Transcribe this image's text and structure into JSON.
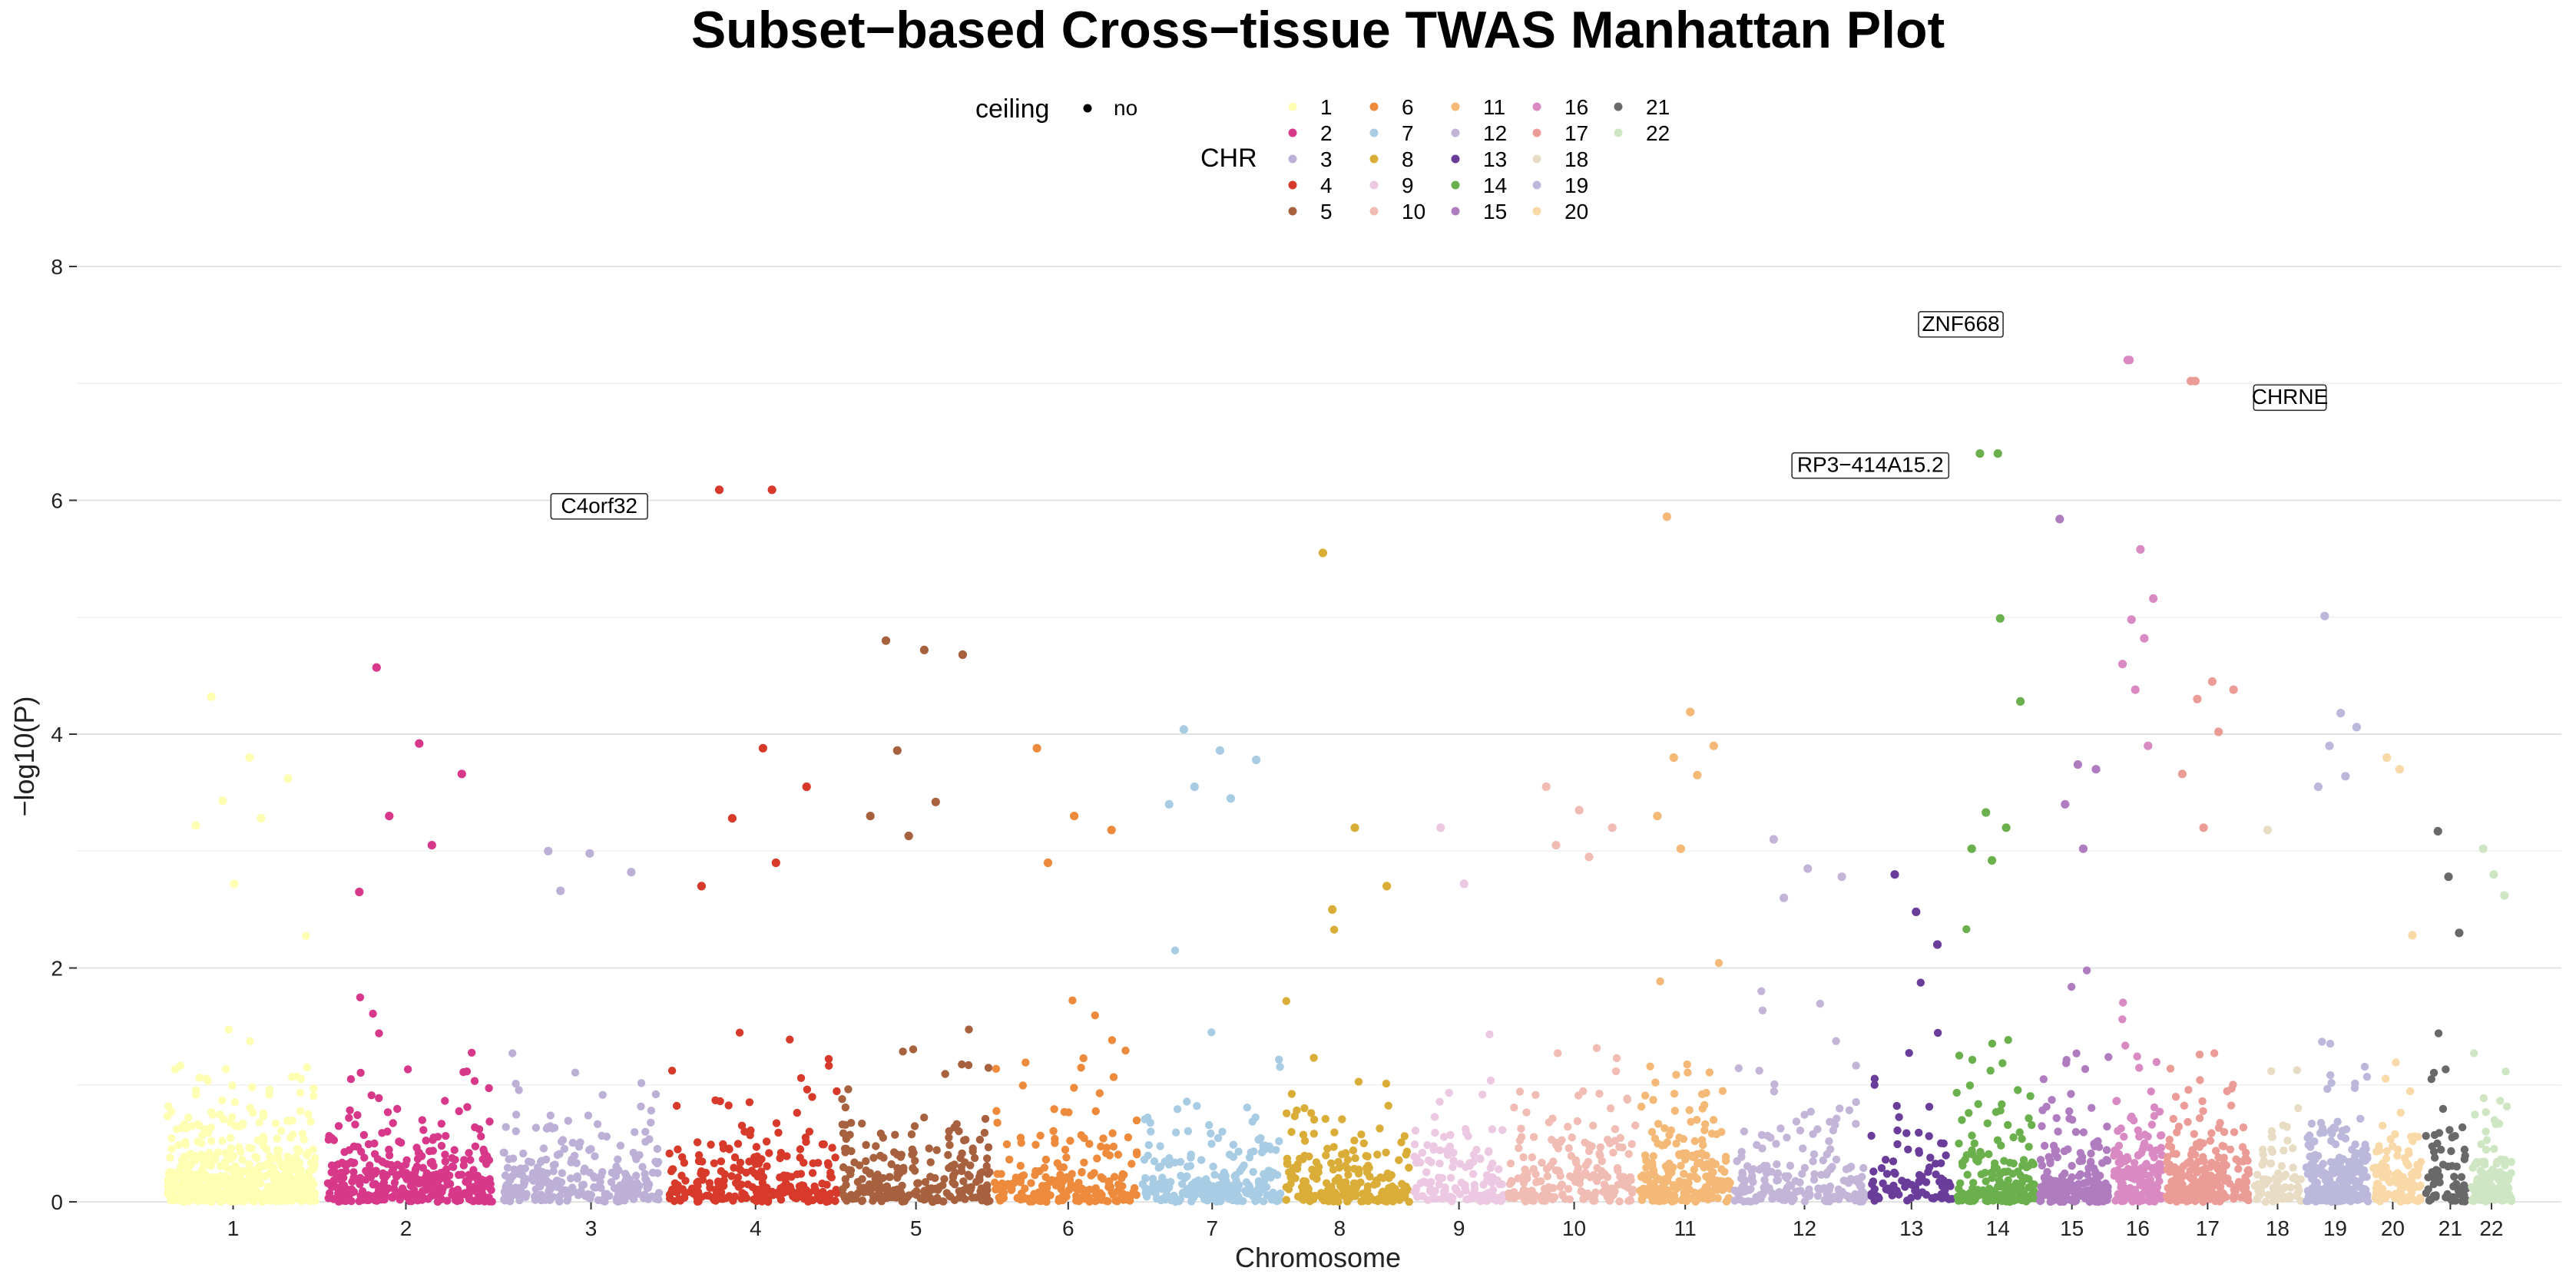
{
  "chart_data": {
    "type": "scatter",
    "title": "Subset−based Cross−tissue TWAS Manhattan Plot",
    "xlabel": "Chromosome",
    "ylabel": "−log10(P)",
    "ylim": [
      0,
      8
    ],
    "y_ticks": [
      0,
      2,
      4,
      6,
      8
    ],
    "grid": "horizontal",
    "legend_position": "top",
    "legend_ceiling": {
      "title": "ceiling",
      "entries": [
        "no"
      ]
    },
    "legend_chr": {
      "title": "CHR"
    },
    "chromosomes": [
      {
        "chr": "1",
        "label": "1",
        "start": -1.0,
        "end": 2.1,
        "n": 560,
        "color": "#FFFFB3",
        "peaks": [
          4.32,
          3.8,
          3.62,
          3.43,
          3.28,
          3.22,
          2.72
        ]
      },
      {
        "chr": "2",
        "label": "2",
        "start": 2.15,
        "end": 4.4,
        "n": 380,
        "color": "#D8388A",
        "peaks": [
          4.57,
          3.92,
          3.66,
          3.3,
          3.05,
          2.65
        ]
      },
      {
        "chr": "3",
        "label": "3",
        "start": 4.45,
        "end": 6.15,
        "n": 260,
        "color": "#BCB0D7",
        "peaks": [
          3.0,
          2.98,
          2.82,
          2.66
        ]
      },
      {
        "chr": "4",
        "label": "4",
        "start": 6.2,
        "end": 7.85,
        "n": 250,
        "color": "#D73A2A",
        "peaks": [
          6.09,
          3.88,
          3.55,
          3.28,
          2.9,
          2.7
        ]
      },
      {
        "chr": "5",
        "label": "5",
        "start": 7.9,
        "end": 9.5,
        "n": 240,
        "color": "#A7613E",
        "peaks": [
          4.8,
          4.72,
          4.68,
          3.86,
          3.42,
          3.3,
          3.13
        ]
      },
      {
        "chr": "6",
        "label": "6",
        "start": 9.55,
        "end": 10.85,
        "n": 200,
        "color": "#EE8A3C",
        "peaks": [
          3.88,
          3.3,
          3.18,
          2.9
        ]
      },
      {
        "chr": "7",
        "label": "7",
        "start": 10.9,
        "end": 12.3,
        "n": 230,
        "color": "#A8CCE4",
        "peaks": [
          4.04,
          3.86,
          3.78,
          3.55,
          3.45,
          3.4
        ]
      },
      {
        "chr": "8",
        "label": "8",
        "start": 12.35,
        "end": 13.6,
        "n": 190,
        "color": "#D9AD38",
        "peaks": [
          5.55,
          3.2,
          2.7,
          2.5
        ]
      },
      {
        "chr": "9",
        "label": "9",
        "start": 13.65,
        "end": 14.55,
        "n": 130,
        "color": "#EDC8E2",
        "peaks": [
          3.2,
          2.72
        ]
      },
      {
        "chr": "10",
        "label": "10",
        "start": 14.6,
        "end": 15.95,
        "n": 190,
        "color": "#F0BCB4",
        "peaks": [
          3.55,
          3.35,
          3.2,
          3.05,
          2.95
        ]
      },
      {
        "chr": "11",
        "label": "11",
        "start": 16.0,
        "end": 16.95,
        "n": 220,
        "color": "#F4B877",
        "peaks": [
          5.86,
          4.19,
          3.9,
          3.8,
          3.65,
          3.3,
          3.02
        ]
      },
      {
        "chr": "12",
        "label": "12",
        "start": 17.0,
        "end": 18.25,
        "n": 190,
        "color": "#C3B5D8",
        "peaks": [
          3.1,
          2.85,
          2.78,
          2.6
        ]
      },
      {
        "chr": "13",
        "label": "13",
        "start": 18.3,
        "end": 19.15,
        "n": 90,
        "color": "#6A3D9A",
        "peaks": [
          2.8,
          2.48,
          2.2
        ]
      },
      {
        "chr": "14",
        "label": "14",
        "start": 19.2,
        "end": 19.95,
        "n": 170,
        "color": "#6AB04C",
        "peaks": [
          6.4,
          4.99,
          4.28,
          3.33,
          3.2,
          3.02,
          2.92
        ]
      },
      {
        "chr": "15",
        "label": "15",
        "start": 20.0,
        "end": 20.75,
        "n": 190,
        "color": "#B07CC0",
        "peaks": [
          5.84,
          3.74,
          3.7,
          3.4,
          3.02
        ]
      },
      {
        "chr": "16",
        "label": "16",
        "start": 20.8,
        "end": 21.25,
        "n": 170,
        "color": "#D98AC2",
        "peaks": [
          7.2,
          5.58,
          5.16,
          4.98,
          4.82,
          4.6,
          4.38,
          3.9
        ]
      },
      {
        "chr": "17",
        "label": "17",
        "start": 21.3,
        "end": 21.95,
        "n": 230,
        "color": "#EC9C96",
        "peaks": [
          7.02,
          4.45,
          4.38,
          4.3,
          4.02,
          3.66,
          3.2
        ]
      },
      {
        "chr": "18",
        "label": "18",
        "start": 22.0,
        "end": 22.4,
        "n": 80,
        "color": "#E8DCC4",
        "peaks": [
          3.18
        ]
      },
      {
        "chr": "19",
        "label": "19",
        "start": 22.45,
        "end": 23.05,
        "n": 210,
        "color": "#BBB8DC",
        "peaks": [
          5.01,
          4.18,
          4.06,
          3.9,
          3.64,
          3.55
        ]
      },
      {
        "chr": "20",
        "label": "20",
        "start": 23.1,
        "end": 23.55,
        "n": 110,
        "color": "#F9D9A8",
        "peaks": [
          3.8,
          3.7,
          2.28
        ]
      },
      {
        "chr": "21",
        "label": "21",
        "start": 23.6,
        "end": 23.9,
        "n": 70,
        "color": "#696969",
        "peaks": [
          3.17,
          2.78,
          2.3
        ]
      },
      {
        "chr": "22",
        "label": "22",
        "start": 23.95,
        "end": 24.35,
        "n": 120,
        "color": "#CFE6C4",
        "peaks": [
          3.02,
          2.8,
          2.62
        ]
      }
    ],
    "x_tick_positions": {
      "1": 0.9,
      "2": 3.0,
      "3": 5.25,
      "4": 7.25,
      "5": 9.2,
      "6": 11.05,
      "7": 12.8,
      "8": 14.35,
      "9": 15.8,
      "10": 17.2,
      "11": 18.55,
      "12": 20.0,
      "13": 21.3,
      "14": 22.35,
      "15": 23.25,
      "16": 24.05,
      "17": 24.9,
      "18": 25.75,
      "19": 26.45,
      "20": 27.15,
      "21": 27.85,
      "22": 28.35
    },
    "annotations": [
      {
        "label": "ZNF668",
        "chr": "16",
        "y": 7.2
      },
      {
        "label": "CHRNE",
        "chr": "17",
        "y": 7.02
      },
      {
        "label": "RP3−414A15.2",
        "chr": "14",
        "y": 6.4
      },
      {
        "label": "C4orf32",
        "chr": "4",
        "y": 6.09
      }
    ]
  }
}
